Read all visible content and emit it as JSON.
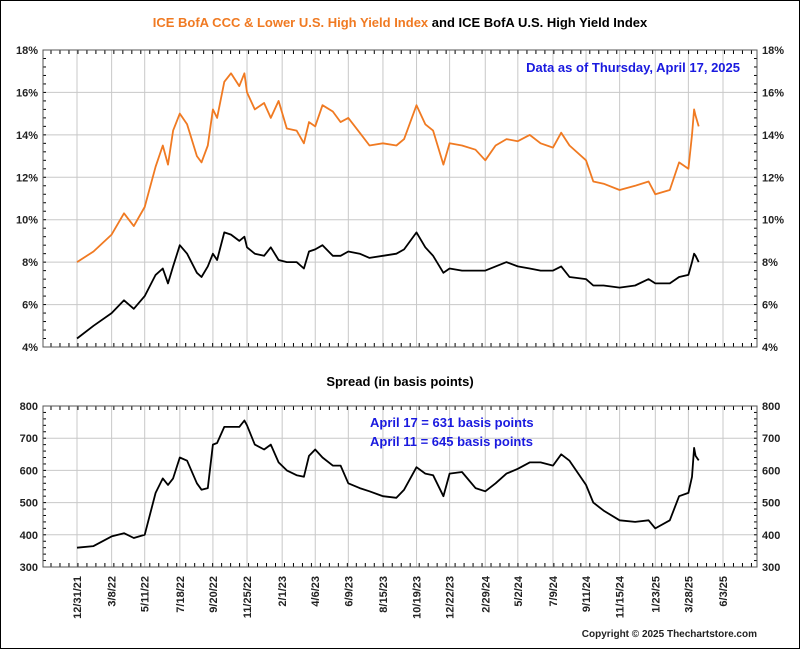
{
  "chart_data": [
    {
      "type": "line",
      "title_parts": [
        {
          "text": "ICE BofA CCC & Lower U.S. High Yield Index",
          "color": "#f07a22"
        },
        {
          "text": " and ICE BofA U.S. High Yield Index",
          "color": "#000000"
        }
      ],
      "annotation": "Data as of Thursday, April 17, 2025",
      "ylim": [
        4,
        18
      ],
      "yticks": [
        "4%",
        "6%",
        "8%",
        "10%",
        "12%",
        "14%",
        "16%",
        "18%"
      ],
      "ytick_values": [
        4,
        6,
        8,
        10,
        12,
        14,
        16,
        18
      ],
      "grid": true,
      "y_axis_both_sides": true,
      "series": [
        {
          "key": "ccc",
          "color": "#f07a22"
        },
        {
          "key": "hy",
          "color": "#000000"
        }
      ]
    },
    {
      "type": "line",
      "title": "Spread (in basis points)",
      "annotations": [
        "April 17 = 631 basis points",
        "April 11 = 645 basis points"
      ],
      "ylim": [
        300,
        800
      ],
      "yticks": [
        "300",
        "400",
        "500",
        "600",
        "700",
        "800"
      ],
      "ytick_values": [
        300,
        400,
        500,
        600,
        700,
        800
      ],
      "grid": true,
      "y_axis_both_sides": true,
      "series": [
        {
          "key": "spread",
          "color": "#000000"
        }
      ]
    }
  ],
  "x_axis": {
    "xlim": [
      "2021-12-31",
      "2025-06-03"
    ],
    "tick_labels": [
      "12/31/21",
      "3/8/22",
      "5/11/22",
      "7/18/22",
      "9/20/22",
      "11/25/22",
      "2/1/23",
      "4/6/23",
      "6/9/23",
      "8/15/23",
      "10/19/23",
      "12/22/23",
      "2/29/24",
      "5/2/24",
      "7/9/24",
      "9/11/24",
      "11/15/24",
      "1/23/25",
      "3/28/25",
      "6/3/25"
    ],
    "tick_dates": [
      "2021-12-31",
      "2022-03-08",
      "2022-05-11",
      "2022-07-18",
      "2022-09-20",
      "2022-11-25",
      "2023-02-01",
      "2023-04-06",
      "2023-06-09",
      "2023-08-15",
      "2023-10-19",
      "2023-12-22",
      "2024-02-29",
      "2024-05-02",
      "2024-07-09",
      "2024-09-11",
      "2024-11-15",
      "2025-01-23",
      "2025-03-28",
      "2025-06-03"
    ]
  },
  "series_data": {
    "dates": [
      "2021-12-31",
      "2022-02-01",
      "2022-03-08",
      "2022-04-01",
      "2022-04-20",
      "2022-05-11",
      "2022-06-01",
      "2022-06-15",
      "2022-06-25",
      "2022-07-05",
      "2022-07-18",
      "2022-08-01",
      "2022-08-20",
      "2022-08-29",
      "2022-09-10",
      "2022-09-20",
      "2022-09-28",
      "2022-10-12",
      "2022-10-25",
      "2022-11-10",
      "2022-11-20",
      "2022-11-25",
      "2022-12-10",
      "2022-12-28",
      "2023-01-10",
      "2023-01-25",
      "2023-02-10",
      "2023-03-01",
      "2023-03-15",
      "2023-03-25",
      "2023-04-06",
      "2023-04-20",
      "2023-05-10",
      "2023-05-25",
      "2023-06-09",
      "2023-07-01",
      "2023-07-20",
      "2023-08-15",
      "2023-09-10",
      "2023-09-25",
      "2023-10-19",
      "2023-11-05",
      "2023-11-20",
      "2023-12-10",
      "2023-12-22",
      "2024-01-15",
      "2024-02-10",
      "2024-02-29",
      "2024-03-20",
      "2024-04-10",
      "2024-05-02",
      "2024-05-25",
      "2024-06-15",
      "2024-07-09",
      "2024-07-25",
      "2024-08-10",
      "2024-09-11",
      "2024-09-25",
      "2024-10-15",
      "2024-11-15",
      "2024-12-15",
      "2025-01-10",
      "2025-01-23",
      "2025-02-20",
      "2025-03-10",
      "2025-03-28",
      "2025-04-04",
      "2025-04-08",
      "2025-04-11",
      "2025-04-17"
    ],
    "ccc": [
      8.0,
      8.5,
      9.3,
      10.3,
      9.7,
      10.6,
      12.5,
      13.5,
      12.6,
      14.2,
      15.0,
      14.5,
      13.0,
      12.7,
      13.5,
      15.2,
      14.8,
      16.5,
      16.9,
      16.3,
      16.9,
      16.0,
      15.2,
      15.5,
      14.8,
      15.6,
      14.3,
      14.2,
      13.6,
      14.6,
      14.4,
      15.4,
      15.1,
      14.6,
      14.8,
      14.1,
      13.5,
      13.6,
      13.5,
      13.8,
      15.4,
      14.5,
      14.2,
      12.6,
      13.6,
      13.5,
      13.3,
      12.8,
      13.5,
      13.8,
      13.7,
      14.0,
      13.6,
      13.4,
      14.1,
      13.5,
      12.8,
      11.8,
      11.7,
      11.4,
      11.6,
      11.8,
      11.2,
      11.4,
      12.7,
      12.4,
      14.0,
      15.2,
      14.9,
      14.4
    ],
    "hy": [
      4.4,
      5.0,
      5.6,
      6.2,
      5.8,
      6.4,
      7.4,
      7.7,
      7.0,
      7.8,
      8.8,
      8.4,
      7.5,
      7.3,
      7.8,
      8.4,
      8.1,
      9.4,
      9.3,
      9.0,
      9.2,
      8.7,
      8.4,
      8.3,
      8.7,
      8.1,
      8.0,
      8.0,
      7.7,
      8.5,
      8.6,
      8.8,
      8.3,
      8.3,
      8.5,
      8.4,
      8.2,
      8.3,
      8.4,
      8.6,
      9.4,
      8.7,
      8.3,
      7.5,
      7.7,
      7.6,
      7.6,
      7.6,
      7.8,
      8.0,
      7.8,
      7.7,
      7.6,
      7.6,
      7.8,
      7.3,
      7.2,
      6.9,
      6.9,
      6.8,
      6.9,
      7.2,
      7.0,
      7.0,
      7.3,
      7.4,
      8.0,
      8.4,
      8.3,
      8.0
    ],
    "spread": [
      360,
      365,
      395,
      405,
      390,
      400,
      530,
      575,
      555,
      575,
      640,
      630,
      560,
      540,
      545,
      680,
      685,
      735,
      735,
      735,
      755,
      740,
      680,
      665,
      680,
      625,
      600,
      585,
      580,
      645,
      665,
      640,
      615,
      615,
      560,
      545,
      535,
      520,
      515,
      540,
      610,
      590,
      585,
      520,
      590,
      595,
      545,
      535,
      560,
      590,
      605,
      625,
      625,
      615,
      650,
      630,
      555,
      500,
      475,
      445,
      440,
      445,
      420,
      445,
      520,
      530,
      580,
      670,
      645,
      631
    ]
  },
  "footer": {
    "copyright": "Copyright © 2025 Thechartstore.com"
  }
}
